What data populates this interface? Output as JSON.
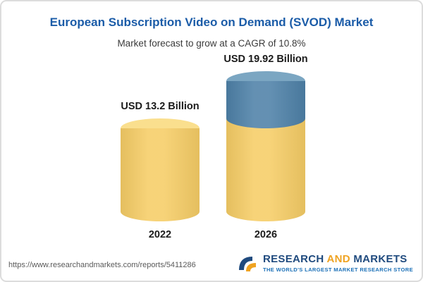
{
  "header": {
    "title": "European Subscription Video on Demand (SVOD) Market",
    "subtitle": "Market forecast to grow at a CAGR of 10.8%"
  },
  "chart_data": {
    "type": "bar",
    "title": "European Subscription Video on Demand (SVOD) Market",
    "subtitle": "Market forecast to grow at a CAGR of 10.8%",
    "categories": [
      "2022",
      "2026"
    ],
    "values": [
      13.2,
      19.92
    ],
    "value_labels": [
      "USD 13.2 Billion",
      "USD 19.92 Billion"
    ],
    "unit": "USD Billion",
    "cagr": "10.8%",
    "grid": false,
    "legend": "none",
    "bar_style": "cylinder",
    "colors": {
      "yellow_body": "#f6cd66",
      "yellow_top": "#fadf8e",
      "blue_body": "#4e81a8",
      "blue_top": "#7ba6c2"
    },
    "notes": "2026 bar is yellow up to the 2022 value with a blue segment on top representing growth from 13.2 to 19.92"
  },
  "footer": {
    "url": "https://www.researchandmarkets.com/reports/5411286",
    "logo": {
      "word1": "RESEARCH",
      "word2": "AND",
      "word3": "MARKETS",
      "tagline": "THE WORLD'S LARGEST MARKET RESEARCH STORE",
      "brand_navy": "#1f4a7e",
      "brand_gold": "#efa322"
    }
  }
}
